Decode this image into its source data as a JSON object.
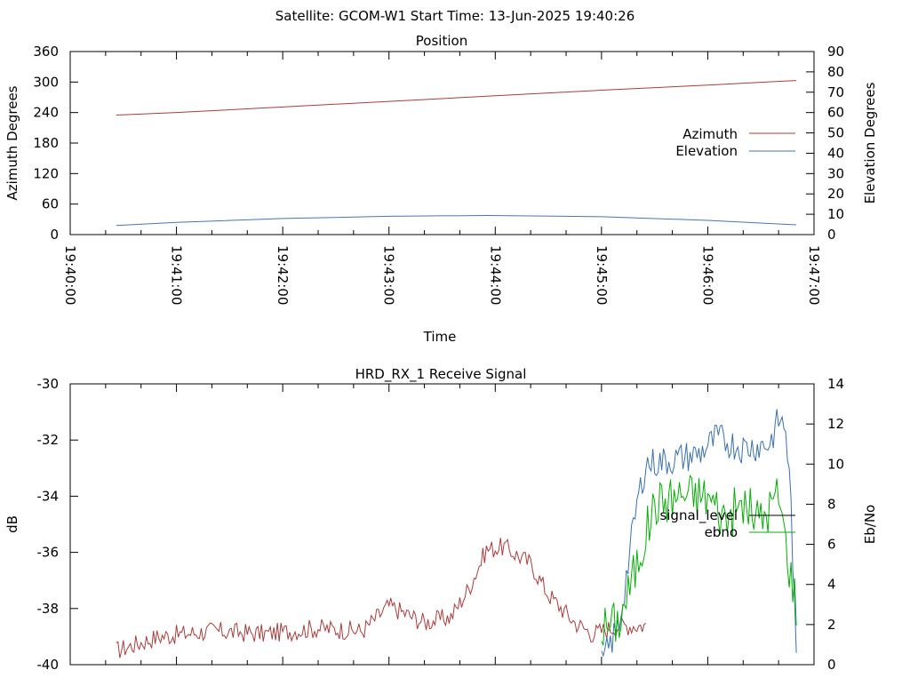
{
  "header": {
    "title": "Satellite: GCOM-W1    Start Time: 13-Jun-2025 19:40:26"
  },
  "colors": {
    "azimuth": "#a83c3c",
    "elevation": "#4a76a8",
    "signal_level": "#a83c3c",
    "ebno_signal": "#3a6fb0",
    "ebno": "#00b000"
  },
  "chart_data": [
    {
      "type": "line",
      "title": "Position",
      "xlabel": "Time",
      "ylabel": "Azimuth Degrees",
      "y2label": "Elevation Degrees",
      "x_ticks": [
        "19:40:00",
        "19:41:00",
        "19:42:00",
        "19:43:00",
        "19:44:00",
        "19:45:00",
        "19:46:00",
        "19:47:00"
      ],
      "xlim": [
        "19:40:00",
        "19:47:00"
      ],
      "y_ticks": [
        0,
        60,
        120,
        180,
        240,
        300,
        360
      ],
      "ylim": [
        0,
        360
      ],
      "y2_ticks": [
        0,
        10,
        20,
        30,
        40,
        50,
        60,
        70,
        80,
        90
      ],
      "y2lim": [
        0,
        90
      ],
      "legend_position": "right",
      "grid": false,
      "series": [
        {
          "name": "Azimuth",
          "axis": "left",
          "points": [
            [
              "19:40:26",
              235
            ],
            [
              "19:41:00",
              240
            ],
            [
              "19:42:00",
              251
            ],
            [
              "19:43:00",
              262
            ],
            [
              "19:44:00",
              273
            ],
            [
              "19:45:00",
              284
            ],
            [
              "19:46:00",
              294
            ],
            [
              "19:46:50",
              303
            ]
          ]
        },
        {
          "name": "Elevation",
          "axis": "left_right",
          "points": [
            [
              "19:40:26",
              4.5
            ],
            [
              "19:41:00",
              6.0
            ],
            [
              "19:42:00",
              7.9
            ],
            [
              "19:43:00",
              9.0
            ],
            [
              "19:43:55",
              9.4
            ],
            [
              "19:45:00",
              8.8
            ],
            [
              "19:46:00",
              7.0
            ],
            [
              "19:46:50",
              4.8
            ]
          ]
        }
      ]
    },
    {
      "type": "line",
      "title": "HRD_RX_1 Receive Signal",
      "ylabel": "dB",
      "y2label": "Eb/No",
      "xlim": [
        "19:40:00",
        "19:47:00"
      ],
      "y_ticks": [
        -40,
        -38,
        -36,
        -34,
        -32,
        -30
      ],
      "ylim": [
        -40,
        -30
      ],
      "y2_ticks": [
        0,
        2,
        4,
        6,
        8,
        10,
        12,
        14
      ],
      "y2lim": [
        0,
        14
      ],
      "legend_position": "right",
      "grid": false,
      "series": [
        {
          "name": "signal_level",
          "axis": "left",
          "points": [
            [
              "19:40:26",
              -39.5
            ],
            [
              "19:40:50",
              -39.0
            ],
            [
              "19:41:20",
              -38.8
            ],
            [
              "19:41:50",
              -38.9
            ],
            [
              "19:42:20",
              -38.7
            ],
            [
              "19:42:45",
              -38.8
            ],
            [
              "19:43:00",
              -37.9
            ],
            [
              "19:43:20",
              -38.5
            ],
            [
              "19:43:35",
              -38.3
            ],
            [
              "19:43:45",
              -37.3
            ],
            [
              "19:43:55",
              -35.9
            ],
            [
              "19:44:05",
              -35.8
            ],
            [
              "19:44:20",
              -36.4
            ],
            [
              "19:44:30",
              -37.5
            ],
            [
              "19:44:45",
              -38.5
            ],
            [
              "19:44:55",
              -38.9
            ],
            [
              "19:45:10",
              -38.6
            ],
            [
              "19:45:25",
              -38.6
            ]
          ]
        },
        {
          "name": "signal_level",
          "axis": "left_right",
          "points": [
            [
              "19:45:00",
              0.0
            ],
            [
              "19:45:10",
              2.0
            ],
            [
              "19:45:15",
              5.0
            ],
            [
              "19:45:20",
              8.0
            ],
            [
              "19:45:25",
              10.0
            ],
            [
              "19:45:40",
              10.2
            ],
            [
              "19:45:55",
              10.5
            ],
            [
              "19:46:05",
              11.3
            ],
            [
              "19:46:20",
              10.8
            ],
            [
              "19:46:35",
              11.0
            ],
            [
              "19:46:40",
              12.2
            ],
            [
              "19:46:44",
              11.8
            ],
            [
              "19:46:47",
              8.0
            ],
            [
              "19:46:50",
              0.0
            ]
          ]
        },
        {
          "name": "ebno",
          "axis": "left_right",
          "points": [
            [
              "19:45:00",
              1.8
            ],
            [
              "19:45:10",
              2.2
            ],
            [
              "19:45:20",
              5.0
            ],
            [
              "19:45:30",
              8.0
            ],
            [
              "19:45:45",
              8.5
            ],
            [
              "19:46:00",
              8.4
            ],
            [
              "19:46:10",
              7.3
            ],
            [
              "19:46:20",
              8.0
            ],
            [
              "19:46:30",
              7.2
            ],
            [
              "19:46:40",
              8.5
            ],
            [
              "19:46:45",
              5.5
            ],
            [
              "19:46:50",
              3.0
            ]
          ]
        }
      ]
    }
  ]
}
